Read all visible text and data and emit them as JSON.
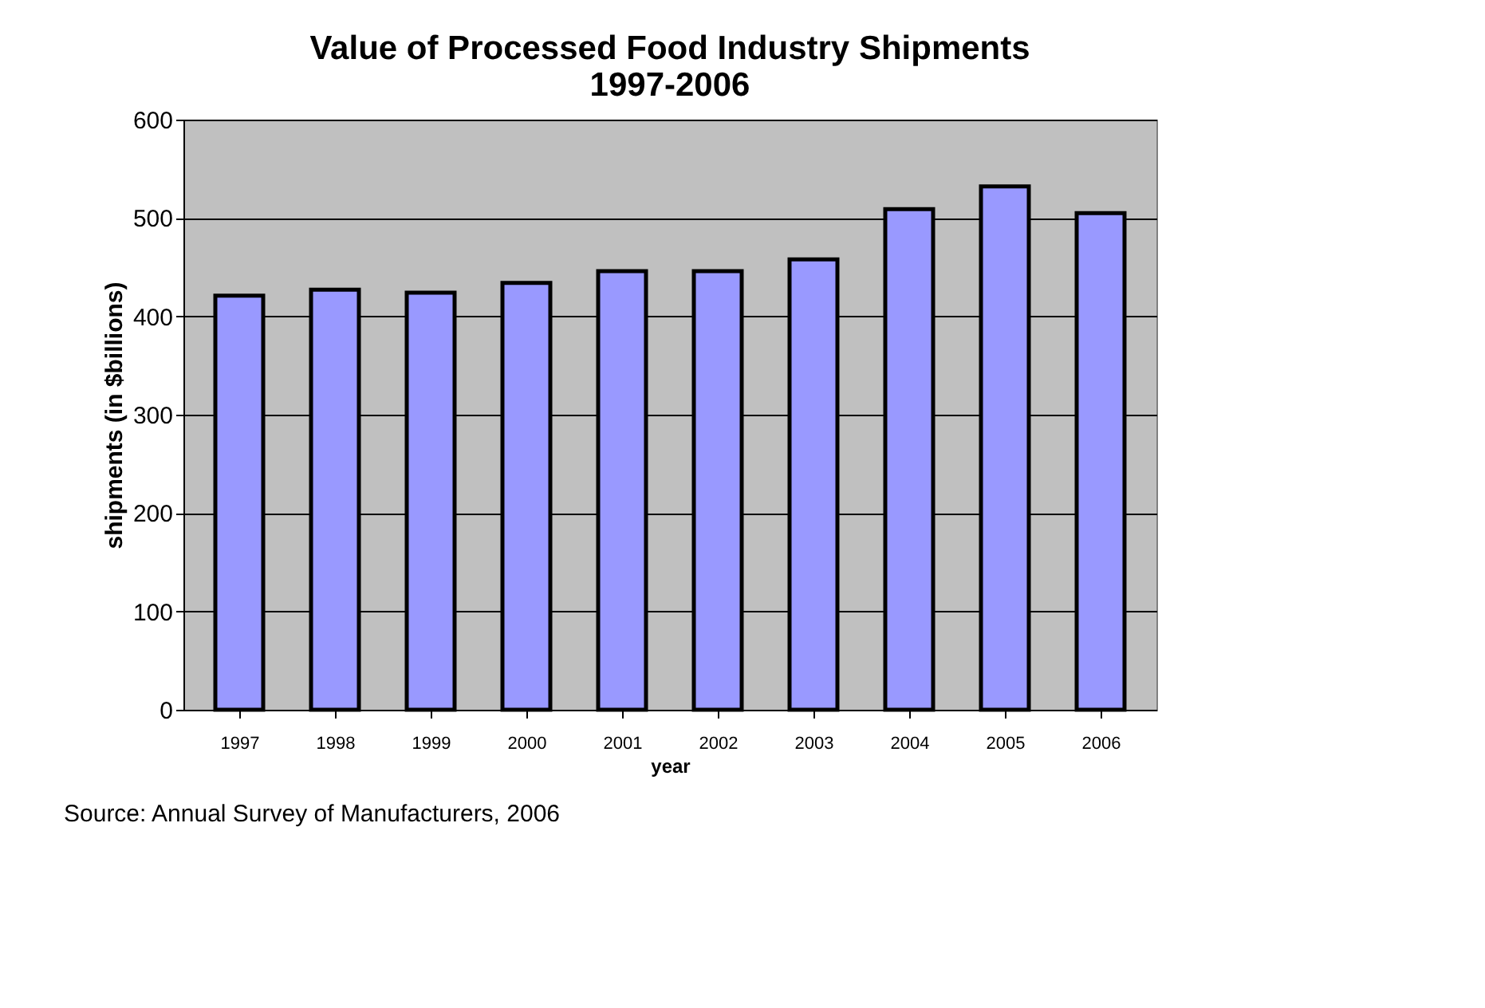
{
  "chart_data": {
    "type": "bar",
    "title": "Value of Processed Food Industry Shipments\n1997-2006",
    "categories": [
      "1997",
      "1998",
      "1999",
      "2000",
      "2001",
      "2002",
      "2003",
      "2004",
      "2005",
      "2006"
    ],
    "values": [
      421,
      427,
      424,
      434,
      446,
      446,
      458,
      509,
      532,
      505
    ],
    "color": "#9999ff",
    "xlabel": "year",
    "ylabel": "shipments (in $billions)",
    "ylim": [
      0,
      600
    ],
    "yticks": [
      0,
      100,
      200,
      300,
      400,
      500,
      600
    ],
    "grid": "y",
    "annotations": [
      "Source: Annual Survey of Manufacturers, 2006"
    ]
  }
}
